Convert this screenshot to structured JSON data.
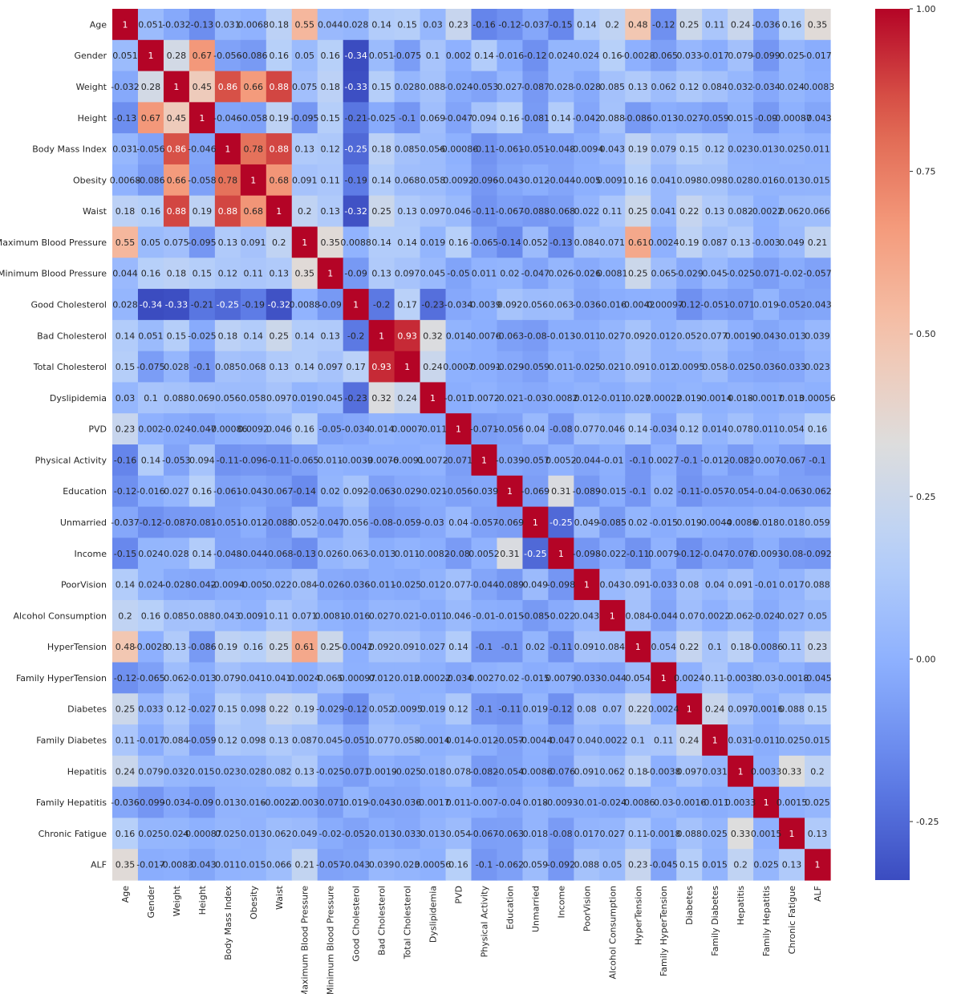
{
  "chart_data": {
    "type": "heatmap",
    "colormap": "coolwarm",
    "title": "",
    "labels": [
      "Age",
      "Gender",
      "Weight",
      "Height",
      "Body Mass Index",
      "Obesity",
      "Waist",
      "Maximum Blood Pressure",
      "Minimum Blood Pressure",
      "Good Cholesterol",
      "Bad Cholesterol",
      "Total Cholesterol",
      "Dyslipidemia",
      "PVD",
      "Physical Activity",
      "Education",
      "Unmarried",
      "Income",
      "PoorVision",
      "Alcohol Consumption",
      "HyperTension",
      "Family  HyperTension",
      "Diabetes",
      "Family Diabetes",
      "Hepatitis",
      "Family Hepatitis",
      "Chronic Fatigue",
      "ALF"
    ],
    "matrix": [
      [
        "1",
        "0.051",
        "-0.032",
        "-0.13",
        "0.031",
        "0.0068",
        "0.18",
        "0.55",
        "0.044",
        "0.028",
        "0.14",
        "0.15",
        "0.03",
        "0.23",
        "-0.16",
        "-0.12",
        "-0.037",
        "-0.15",
        "0.14",
        "0.2",
        "0.48",
        "-0.12",
        "0.25",
        "0.11",
        "0.24",
        "-0.036",
        "0.16",
        "0.35"
      ],
      [
        "0.051",
        "1",
        "0.28",
        "0.67",
        "-0.056",
        "-0.086",
        "0.16",
        "0.05",
        "0.16",
        "-0.34",
        "0.051",
        "-0.075",
        "0.1",
        "0.002",
        "0.14",
        "-0.016",
        "-0.12",
        "0.024",
        "0.024",
        "0.16",
        "-0.0028",
        "-0.065",
        "0.033",
        "-0.017",
        "0.079",
        "-0.099",
        "0.025",
        "-0.017"
      ],
      [
        "-0.032",
        "0.28",
        "1",
        "0.45",
        "0.86",
        "0.66",
        "0.88",
        "0.075",
        "0.18",
        "-0.33",
        "0.15",
        "0.028",
        "0.088",
        "-0.024",
        "-0.053",
        "0.027",
        "-0.087",
        "0.028",
        "-0.028",
        "0.085",
        "0.13",
        "0.062",
        "0.12",
        "0.084",
        "0.032",
        "-0.034",
        "0.024",
        "-0.0083"
      ],
      [
        "-0.13",
        "0.67",
        "0.45",
        "1",
        "-0.046",
        "-0.058",
        "0.19",
        "-0.095",
        "0.15",
        "-0.21",
        "-0.025",
        "-0.1",
        "0.069",
        "-0.047",
        "0.094",
        "0.16",
        "-0.081",
        "0.14",
        "-0.042",
        "0.088",
        "-0.086",
        "-0.013",
        "-0.027",
        "-0.059",
        "0.015",
        "-0.09",
        "-0.00087",
        "-0.043"
      ],
      [
        "0.031",
        "-0.056",
        "0.86",
        "-0.046",
        "1",
        "0.78",
        "0.88",
        "0.13",
        "0.12",
        "-0.25",
        "0.18",
        "0.085",
        "0.056",
        "-0.00086",
        "-0.11",
        "-0.061",
        "-0.051",
        "-0.048",
        "-0.0094",
        "0.043",
        "0.19",
        "0.079",
        "0.15",
        "0.12",
        "0.023",
        "0.013",
        "0.025",
        "0.011"
      ],
      [
        "0.0068",
        "-0.086",
        "0.66",
        "-0.058",
        "0.78",
        "1",
        "0.68",
        "0.091",
        "0.11",
        "-0.19",
        "0.14",
        "0.068",
        "0.058",
        "0.0092",
        "-0.096",
        "-0.043",
        "-0.012",
        "-0.044",
        "-0.005",
        "0.0091",
        "0.16",
        "0.041",
        "0.098",
        "0.098",
        "0.028",
        "0.016",
        "0.013",
        "0.015"
      ],
      [
        "0.18",
        "0.16",
        "0.88",
        "0.19",
        "0.88",
        "0.68",
        "1",
        "0.2",
        "0.13",
        "-0.32",
        "0.25",
        "0.13",
        "0.097",
        "0.046",
        "-0.11",
        "-0.067",
        "-0.088",
        "-0.068",
        "0.022",
        "0.11",
        "0.25",
        "0.041",
        "0.22",
        "0.13",
        "0.082",
        "-0.0022",
        "0.062",
        "0.066"
      ],
      [
        "0.55",
        "0.05",
        "0.075",
        "-0.095",
        "0.13",
        "0.091",
        "0.2",
        "1",
        "0.35",
        "0.0088",
        "0.14",
        "0.14",
        "0.019",
        "0.16",
        "-0.065",
        "-0.14",
        "0.052",
        "-0.13",
        "0.084",
        "0.071",
        "0.61",
        "0.0024",
        "0.19",
        "0.087",
        "0.13",
        "-0.003",
        "0.049",
        "0.21"
      ],
      [
        "0.044",
        "0.16",
        "0.18",
        "0.15",
        "0.12",
        "0.11",
        "0.13",
        "0.35",
        "1",
        "-0.09",
        "0.13",
        "0.097",
        "0.045",
        "-0.05",
        "0.011",
        "0.02",
        "-0.047",
        "0.026",
        "-0.026",
        "0.0081",
        "0.25",
        "0.065",
        "-0.029",
        "0.045",
        "-0.025",
        "-0.071",
        "-0.02",
        "-0.057"
      ],
      [
        "0.028",
        "-0.34",
        "-0.33",
        "-0.21",
        "-0.25",
        "-0.19",
        "-0.32",
        "0.0088",
        "-0.09",
        "1",
        "-0.2",
        "0.17",
        "-0.23",
        "-0.034",
        "-0.0039",
        "0.092",
        "0.056",
        "0.063",
        "-0.036",
        "-0.016",
        "-0.0042",
        "-0.00097",
        "-0.12",
        "-0.051",
        "-0.071",
        "0.019",
        "-0.052",
        "-0.043"
      ],
      [
        "0.14",
        "0.051",
        "0.15",
        "-0.025",
        "0.18",
        "0.14",
        "0.25",
        "0.14",
        "0.13",
        "-0.2",
        "1",
        "0.93",
        "0.32",
        "0.014",
        "-0.0076",
        "-0.063",
        "-0.08",
        "-0.013",
        "-0.011",
        "0.027",
        "0.092",
        "0.012",
        "0.052",
        "0.077",
        "0.0019",
        "-0.043",
        "-0.013",
        "0.039"
      ],
      [
        "0.15",
        "-0.075",
        "0.028",
        "-0.1",
        "0.085",
        "0.068",
        "0.13",
        "0.14",
        "0.097",
        "0.17",
        "0.93",
        "1",
        "0.24",
        "0.0007",
        "-0.0091",
        "-0.029",
        "-0.059",
        "0.011",
        "-0.025",
        "0.021",
        "0.091",
        "0.012",
        "0.0095",
        "0.058",
        "-0.025",
        "-0.036",
        "-0.033",
        "0.023"
      ],
      [
        "0.03",
        "0.1",
        "0.088",
        "0.069",
        "0.056",
        "0.058",
        "0.097",
        "0.019",
        "0.045",
        "-0.23",
        "0.32",
        "0.24",
        "1",
        "-0.011",
        "0.0072",
        "-0.021",
        "-0.03",
        "-0.0082",
        "0.012",
        "-0.011",
        "0.027",
        "0.00022",
        "0.019",
        "-0.0014",
        "0.018",
        "-0.0017",
        "0.013",
        "0.00056"
      ],
      [
        "0.23",
        "0.002",
        "-0.024",
        "-0.047",
        "-0.00086",
        "0.0092",
        "0.046",
        "0.16",
        "-0.05",
        "-0.034",
        "0.014",
        "0.0007",
        "-0.011",
        "1",
        "-0.071",
        "-0.056",
        "0.04",
        "-0.08",
        "0.077",
        "0.046",
        "0.14",
        "-0.034",
        "0.12",
        "0.014",
        "0.078",
        "0.011",
        "0.054",
        "0.16"
      ],
      [
        "-0.16",
        "0.14",
        "-0.053",
        "0.094",
        "-0.11",
        "-0.096",
        "-0.11",
        "-0.065",
        "0.011",
        "-0.0039",
        "-0.0076",
        "-0.0091",
        "0.0072",
        "-0.071",
        "1",
        "-0.039",
        "-0.057",
        "0.0052",
        "-0.044",
        "-0.01",
        "-0.1",
        "0.0027",
        "-0.1",
        "-0.012",
        "-0.082",
        "-0.007",
        "-0.067",
        "-0.1"
      ],
      [
        "-0.12",
        "-0.016",
        "0.027",
        "0.16",
        "-0.061",
        "-0.043",
        "-0.067",
        "-0.14",
        "0.02",
        "0.092",
        "-0.063",
        "-0.029",
        "-0.021",
        "-0.056",
        "-0.039",
        "1",
        "-0.069",
        "0.31",
        "-0.089",
        "-0.015",
        "-0.1",
        "0.02",
        "-0.11",
        "-0.057",
        "-0.054",
        "-0.04",
        "-0.063",
        "-0.062"
      ],
      [
        "-0.037",
        "-0.12",
        "-0.087",
        "-0.081",
        "-0.051",
        "-0.012",
        "-0.088",
        "0.052",
        "-0.047",
        "0.056",
        "-0.08",
        "-0.059",
        "-0.03",
        "0.04",
        "-0.057",
        "-0.069",
        "1",
        "-0.25",
        "0.049",
        "-0.085",
        "0.02",
        "-0.015",
        "0.019",
        "-0.0044",
        "-0.0086",
        "0.018",
        "0.018",
        "0.059"
      ],
      [
        "-0.15",
        "0.024",
        "0.028",
        "0.14",
        "-0.048",
        "-0.044",
        "-0.068",
        "-0.13",
        "0.026",
        "0.063",
        "-0.013",
        "0.011",
        "-0.0082",
        "-0.08",
        "0.0052",
        "0.31",
        "-0.25",
        "1",
        "-0.098",
        "-0.022",
        "-0.11",
        "0.0079",
        "-0.12",
        "-0.047",
        "-0.076",
        "-0.0093",
        "-0.08",
        "-0.092"
      ],
      [
        "0.14",
        "0.024",
        "-0.028",
        "-0.042",
        "-0.0094",
        "-0.005",
        "0.022",
        "0.084",
        "-0.026",
        "-0.036",
        "-0.011",
        "-0.025",
        "0.012",
        "0.077",
        "-0.044",
        "-0.089",
        "0.049",
        "-0.098",
        "1",
        "0.043",
        "0.091",
        "-0.033",
        "0.08",
        "0.04",
        "0.091",
        "-0.01",
        "0.017",
        "0.088"
      ],
      [
        "0.2",
        "0.16",
        "0.085",
        "0.088",
        "0.043",
        "0.0091",
        "0.11",
        "0.071",
        "0.0081",
        "-0.016",
        "0.027",
        "0.021",
        "-0.011",
        "0.046",
        "-0.01",
        "-0.015",
        "-0.085",
        "-0.022",
        "0.043",
        "1",
        "0.084",
        "-0.044",
        "0.07",
        "0.0022",
        "0.062",
        "-0.024",
        "0.027",
        "0.05"
      ],
      [
        "0.48",
        "-0.0028",
        "0.13",
        "-0.086",
        "0.19",
        "0.16",
        "0.25",
        "0.61",
        "0.25",
        "-0.0042",
        "0.092",
        "0.091",
        "0.027",
        "0.14",
        "-0.1",
        "-0.1",
        "0.02",
        "-0.11",
        "0.091",
        "0.084",
        "1",
        "0.054",
        "0.22",
        "0.1",
        "0.18",
        "-0.0086",
        "0.11",
        "0.23"
      ],
      [
        "-0.12",
        "-0.065",
        "0.062",
        "-0.013",
        "0.079",
        "0.041",
        "0.041",
        "0.0024",
        "0.065",
        "-0.00097",
        "0.012",
        "0.012",
        "0.00022",
        "-0.034",
        "0.0027",
        "0.02",
        "-0.015",
        "0.0079",
        "-0.033",
        "-0.044",
        "0.054",
        "1",
        "0.0024",
        "0.11",
        "-0.0038",
        "0.03",
        "-0.0018",
        "-0.045"
      ],
      [
        "0.25",
        "0.033",
        "0.12",
        "-0.027",
        "0.15",
        "0.098",
        "0.22",
        "0.19",
        "-0.029",
        "-0.12",
        "0.052",
        "0.0095",
        "0.019",
        "0.12",
        "-0.1",
        "-0.11",
        "0.019",
        "-0.12",
        "0.08",
        "0.07",
        "0.22",
        "0.0024",
        "1",
        "0.24",
        "0.097",
        "-0.0016",
        "0.088",
        "0.15"
      ],
      [
        "0.11",
        "-0.017",
        "0.084",
        "-0.059",
        "0.12",
        "0.098",
        "0.13",
        "0.087",
        "0.045",
        "-0.051",
        "0.077",
        "0.058",
        "-0.0014",
        "0.014",
        "-0.012",
        "-0.057",
        "-0.0044",
        "-0.047",
        "0.04",
        "0.0022",
        "0.1",
        "0.11",
        "0.24",
        "1",
        "0.031",
        "-0.011",
        "0.025",
        "0.015"
      ],
      [
        "0.24",
        "0.079",
        "0.032",
        "0.015",
        "0.023",
        "0.028",
        "0.082",
        "0.13",
        "-0.025",
        "-0.071",
        "0.0019",
        "-0.025",
        "0.018",
        "0.078",
        "-0.082",
        "-0.054",
        "-0.0086",
        "-0.076",
        "0.091",
        "0.062",
        "0.18",
        "-0.0038",
        "0.097",
        "0.031",
        "1",
        "0.0033",
        "0.33",
        "0.2"
      ],
      [
        "-0.036",
        "-0.099",
        "-0.034",
        "-0.09",
        "0.013",
        "0.016",
        "-0.0022",
        "-0.003",
        "-0.071",
        "0.019",
        "-0.043",
        "-0.036",
        "-0.0017",
        "0.011",
        "-0.007",
        "-0.04",
        "0.018",
        "-0.0093",
        "-0.01",
        "-0.024",
        "-0.0086",
        "0.03",
        "-0.0016",
        "-0.011",
        "0.0033",
        "1",
        "0.0015",
        "0.025"
      ],
      [
        "0.16",
        "0.025",
        "0.024",
        "-0.00087",
        "0.025",
        "0.013",
        "0.062",
        "0.049",
        "-0.02",
        "-0.052",
        "-0.013",
        "-0.033",
        "0.013",
        "0.054",
        "-0.067",
        "-0.063",
        "0.018",
        "-0.08",
        "0.017",
        "0.027",
        "0.11",
        "-0.0018",
        "0.088",
        "0.025",
        "0.33",
        "0.0015",
        "1",
        "0.13"
      ],
      [
        "0.35",
        "-0.017",
        "-0.0083",
        "-0.043",
        "0.011",
        "0.015",
        "0.066",
        "0.21",
        "-0.057",
        "-0.043",
        "0.039",
        "0.023",
        "0.00056",
        "0.16",
        "-0.1",
        "-0.062",
        "0.059",
        "-0.092",
        "0.088",
        "0.05",
        "0.23",
        "-0.045",
        "0.15",
        "0.015",
        "0.2",
        "0.025",
        "0.13",
        "1"
      ]
    ],
    "vmin": -0.34,
    "vmax": 1,
    "colorbar_ticks": [
      "1.00",
      "0.75",
      "0.50",
      "0.25",
      "0.00",
      "-0.25"
    ],
    "colorbar_tick_values": [
      1.0,
      0.75,
      0.5,
      0.25,
      0.0,
      -0.25
    ]
  }
}
